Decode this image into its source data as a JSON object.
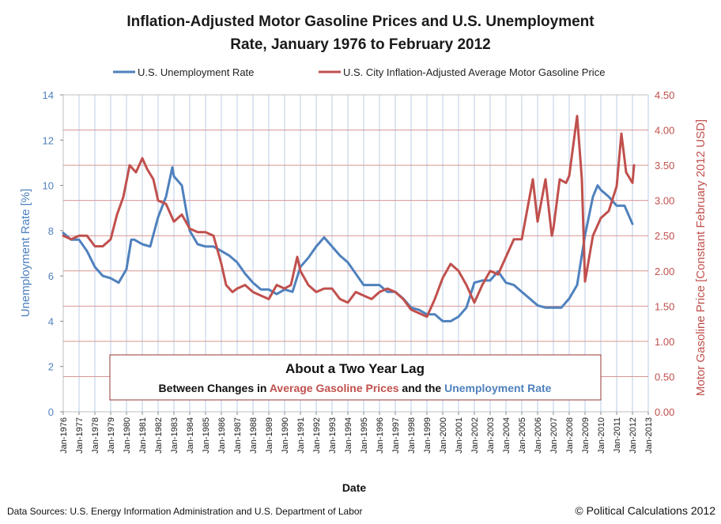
{
  "chart_data": {
    "type": "line",
    "title": "Inflation-Adjusted Motor Gasoline Prices and U.S. Unemployment Rate, January 1976 to February 2012",
    "title_lines": [
      "Inflation-Adjusted Motor Gasoline Prices and U.S. Unemployment",
      "Rate, January 1976 to February 2012"
    ],
    "xlabel": "Date",
    "ylabel_left": "Unemployment Rate [%]",
    "ylabel_right": "Motor Gasoline Price [Constant February 2012 USD]",
    "y_left_range": [
      0,
      14
    ],
    "y_right_range": [
      0,
      4.5
    ],
    "y_left_ticks": [
      "0",
      "2",
      "4",
      "6",
      "8",
      "10",
      "12",
      "14"
    ],
    "y_right_ticks": [
      "0.00",
      "0.50",
      "1.00",
      "1.50",
      "2.00",
      "2.50",
      "3.00",
      "3.50",
      "4.00",
      "4.50"
    ],
    "x_range": [
      1976,
      2013
    ],
    "x_ticks": [
      "Jan-1976",
      "Jan-1977",
      "Jan-1978",
      "Jan-1979",
      "Jan-1980",
      "Jan-1981",
      "Jan-1982",
      "Jan-1983",
      "Jan-1984",
      "Jan-1985",
      "Jan-1986",
      "Jan-1987",
      "Jan-1988",
      "Jan-1989",
      "Jan-1990",
      "Jan-1991",
      "Jan-1992",
      "Jan-1993",
      "Jan-1994",
      "Jan-1995",
      "Jan-1996",
      "Jan-1997",
      "Jan-1998",
      "Jan-1999",
      "Jan-2000",
      "Jan-2001",
      "Jan-2002",
      "Jan-2003",
      "Jan-2004",
      "Jan-2005",
      "Jan-2006",
      "Jan-2007",
      "Jan-2008",
      "Jan-2009",
      "Jan-2010",
      "Jan-2011",
      "Jan-2012",
      "Jan-2013"
    ],
    "grid": true,
    "legend_placement": "top",
    "series": [
      {
        "name": "U.S. Unemployment Rate",
        "axis": "left",
        "color": "#4f81bd",
        "x": [
          1976.0,
          1976.5,
          1977.0,
          1977.5,
          1978.0,
          1978.5,
          1979.0,
          1979.5,
          1980.0,
          1980.3,
          1980.5,
          1981.0,
          1981.5,
          1982.0,
          1982.5,
          1982.9,
          1983.0,
          1983.5,
          1984.0,
          1984.5,
          1985.0,
          1985.5,
          1986.0,
          1986.5,
          1987.0,
          1987.5,
          1988.0,
          1988.5,
          1989.0,
          1989.5,
          1990.0,
          1990.5,
          1991.0,
          1991.5,
          1992.0,
          1992.5,
          1993.0,
          1993.5,
          1994.0,
          1994.5,
          1995.0,
          1995.5,
          1996.0,
          1996.5,
          1997.0,
          1997.5,
          1998.0,
          1998.5,
          1999.0,
          1999.5,
          2000.0,
          2000.5,
          2001.0,
          2001.5,
          2002.0,
          2002.5,
          2003.0,
          2003.5,
          2004.0,
          2004.5,
          2005.0,
          2005.5,
          2006.0,
          2006.5,
          2007.0,
          2007.5,
          2008.0,
          2008.5,
          2009.0,
          2009.5,
          2009.8,
          2010.0,
          2010.5,
          2011.0,
          2011.5,
          2012.0
        ],
        "values": [
          7.9,
          7.6,
          7.6,
          7.1,
          6.4,
          6.0,
          5.9,
          5.7,
          6.3,
          7.6,
          7.6,
          7.4,
          7.3,
          8.6,
          9.5,
          10.8,
          10.4,
          10.0,
          8.0,
          7.4,
          7.3,
          7.3,
          7.1,
          6.9,
          6.6,
          6.1,
          5.7,
          5.4,
          5.4,
          5.2,
          5.4,
          5.3,
          6.4,
          6.8,
          7.3,
          7.7,
          7.3,
          6.9,
          6.6,
          6.1,
          5.6,
          5.6,
          5.6,
          5.3,
          5.3,
          5.0,
          4.6,
          4.5,
          4.3,
          4.3,
          4.0,
          4.0,
          4.2,
          4.6,
          5.7,
          5.8,
          5.8,
          6.2,
          5.7,
          5.6,
          5.3,
          5.0,
          4.7,
          4.6,
          4.6,
          4.6,
          5.0,
          5.6,
          7.8,
          9.5,
          10.0,
          9.8,
          9.5,
          9.1,
          9.1,
          8.3
        ]
      },
      {
        "name": "U.S. City Inflation-Adjusted  Average Motor Gasoline Price",
        "axis": "right",
        "color": "#c0504d",
        "x": [
          1976.0,
          1976.5,
          1977.0,
          1977.5,
          1978.0,
          1978.5,
          1979.0,
          1979.4,
          1979.8,
          1980.2,
          1980.6,
          1981.0,
          1981.3,
          1981.7,
          1982.0,
          1982.5,
          1983.0,
          1983.5,
          1984.0,
          1984.5,
          1985.0,
          1985.5,
          1986.0,
          1986.3,
          1986.7,
          1987.0,
          1987.5,
          1988.0,
          1988.5,
          1989.0,
          1989.5,
          1990.0,
          1990.4,
          1990.8,
          1991.0,
          1991.5,
          1992.0,
          1992.5,
          1993.0,
          1993.5,
          1994.0,
          1994.5,
          1995.0,
          1995.5,
          1996.0,
          1996.5,
          1997.0,
          1997.5,
          1998.0,
          1998.5,
          1999.0,
          1999.5,
          2000.0,
          2000.5,
          2001.0,
          2001.5,
          2002.0,
          2002.5,
          2003.0,
          2003.5,
          2004.0,
          2004.5,
          2005.0,
          2005.7,
          2006.0,
          2006.5,
          2006.9,
          2007.0,
          2007.4,
          2007.8,
          2008.0,
          2008.5,
          2008.8,
          2009.0,
          2009.5,
          2010.0,
          2010.5,
          2011.0,
          2011.3,
          2011.6,
          2012.0,
          2012.1
        ],
        "values": [
          2.5,
          2.45,
          2.5,
          2.5,
          2.35,
          2.35,
          2.45,
          2.8,
          3.05,
          3.5,
          3.4,
          3.6,
          3.45,
          3.3,
          3.0,
          2.95,
          2.7,
          2.8,
          2.6,
          2.55,
          2.55,
          2.5,
          2.1,
          1.8,
          1.7,
          1.75,
          1.8,
          1.7,
          1.65,
          1.6,
          1.8,
          1.75,
          1.8,
          2.2,
          2.0,
          1.8,
          1.7,
          1.75,
          1.75,
          1.6,
          1.55,
          1.7,
          1.65,
          1.6,
          1.7,
          1.75,
          1.7,
          1.6,
          1.45,
          1.4,
          1.35,
          1.6,
          1.9,
          2.1,
          2.0,
          1.8,
          1.55,
          1.8,
          2.0,
          1.95,
          2.2,
          2.45,
          2.45,
          3.3,
          2.7,
          3.3,
          2.5,
          2.6,
          3.3,
          3.25,
          3.35,
          4.2,
          3.3,
          1.85,
          2.5,
          2.75,
          2.85,
          3.2,
          3.95,
          3.4,
          3.25,
          3.5
        ]
      }
    ],
    "annotation": {
      "title": "About a Two Year Lag",
      "sub_parts": [
        "Between Changes in ",
        "Average Gasoline Prices",
        " and the ",
        "Unemployment Rate"
      ]
    }
  },
  "footer": {
    "sources": "Data Sources: U.S. Energy Information Administration and U.S. Department of Labor",
    "copyright": "© Political Calculations 2012"
  },
  "colors": {
    "blue": "#4f81bd",
    "red": "#c0504d",
    "grid_h": "#d99694",
    "grid_v": "#b9cde5"
  }
}
